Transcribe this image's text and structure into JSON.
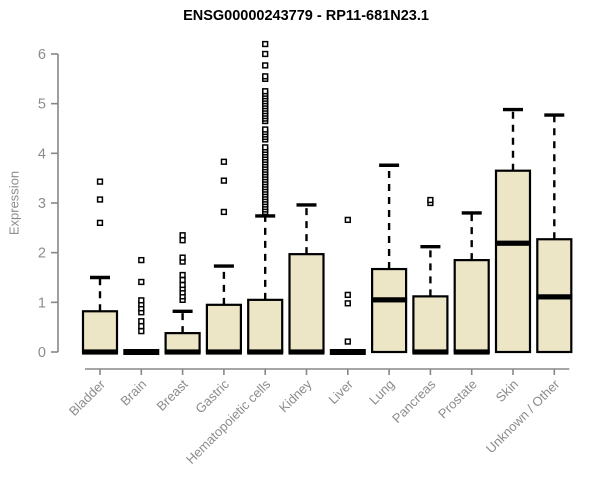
{
  "chart_data": {
    "type": "boxplot",
    "title": "ENSG00000243779 - RP11-681N23.1",
    "ylabel": "Expression",
    "xlabel": "",
    "ylim": [
      0,
      6.3
    ],
    "y_ticks": [
      0,
      1,
      2,
      3,
      4,
      5,
      6
    ],
    "grid": false,
    "legend": "none",
    "colors": {
      "box_fill": "#ECE5C6",
      "box_border": "#000000",
      "median": "#000000",
      "whisker": "#000000",
      "axis": "#878787",
      "tick_label": "#8c8c8c",
      "title": "#000000",
      "background": "#ffffff"
    },
    "categories": [
      "Bladder",
      "Brain",
      "Breast",
      "Gastric",
      "Hematopoietic cells",
      "Kidney",
      "Liver",
      "Lung",
      "Pancreas",
      "Prostate",
      "Skin",
      "Unknown / Other"
    ],
    "series": [
      {
        "category": "Bladder",
        "low": 0,
        "q1": 0,
        "median": 0,
        "q3": 0.82,
        "high": 1.5,
        "outliers": [
          2.6,
          3.07,
          3.43
        ]
      },
      {
        "category": "Brain",
        "low": 0,
        "q1": 0,
        "median": 0,
        "q3": 0,
        "high": 0,
        "outliers": [
          0.42,
          0.52,
          0.62,
          0.8,
          0.88,
          0.96,
          1.04,
          1.41,
          1.85
        ]
      },
      {
        "category": "Breast",
        "low": 0,
        "q1": 0,
        "median": 0,
        "q3": 0.38,
        "high": 0.82,
        "outliers": [
          1.05,
          1.12,
          1.2,
          1.28,
          1.35,
          1.45,
          1.55,
          1.82,
          1.9,
          2.25,
          2.35
        ]
      },
      {
        "category": "Gastric",
        "low": 0,
        "q1": 0,
        "median": 0,
        "q3": 0.95,
        "high": 1.73,
        "outliers": [
          2.82,
          3.45,
          3.83
        ]
      },
      {
        "category": "Hematopoietic cells",
        "low": 0,
        "q1": 0,
        "median": 0,
        "q3": 1.05,
        "high": 2.74,
        "outliers": [
          2.82,
          2.87,
          2.92,
          2.97,
          3.02,
          3.07,
          3.12,
          3.17,
          3.22,
          3.27,
          3.32,
          3.37,
          3.42,
          3.47,
          3.52,
          3.57,
          3.62,
          3.67,
          3.72,
          3.77,
          3.82,
          3.87,
          3.92,
          3.97,
          4.02,
          4.07,
          4.12,
          4.28,
          4.33,
          4.38,
          4.43,
          4.48,
          4.65,
          4.7,
          4.75,
          4.8,
          4.85,
          4.9,
          4.95,
          5.0,
          5.05,
          5.1,
          5.15,
          5.2,
          5.25,
          5.5,
          5.55,
          5.77,
          6.0,
          6.2
        ]
      },
      {
        "category": "Kidney",
        "low": 0,
        "q1": 0,
        "median": 0,
        "q3": 1.97,
        "high": 2.96,
        "outliers": []
      },
      {
        "category": "Liver",
        "low": 0,
        "q1": 0,
        "median": 0,
        "q3": 0,
        "high": 0,
        "outliers": [
          0.21,
          0.98,
          1.15,
          2.66
        ]
      },
      {
        "category": "Lung",
        "low": 0,
        "q1": 0,
        "median": 1.05,
        "q3": 1.67,
        "high": 3.76,
        "outliers": []
      },
      {
        "category": "Pancreas",
        "low": 0,
        "q1": 0,
        "median": 0,
        "q3": 1.12,
        "high": 2.12,
        "outliers": [
          3.0,
          3.06
        ]
      },
      {
        "category": "Prostate",
        "low": 0,
        "q1": 0,
        "median": 0,
        "q3": 1.85,
        "high": 2.8,
        "outliers": []
      },
      {
        "category": "Skin",
        "low": 0,
        "q1": 0,
        "median": 2.19,
        "q3": 3.65,
        "high": 4.88,
        "outliers": []
      },
      {
        "category": "Unknown / Other",
        "low": 0,
        "q1": 0,
        "median": 1.11,
        "q3": 2.27,
        "high": 4.77,
        "outliers": []
      }
    ]
  }
}
